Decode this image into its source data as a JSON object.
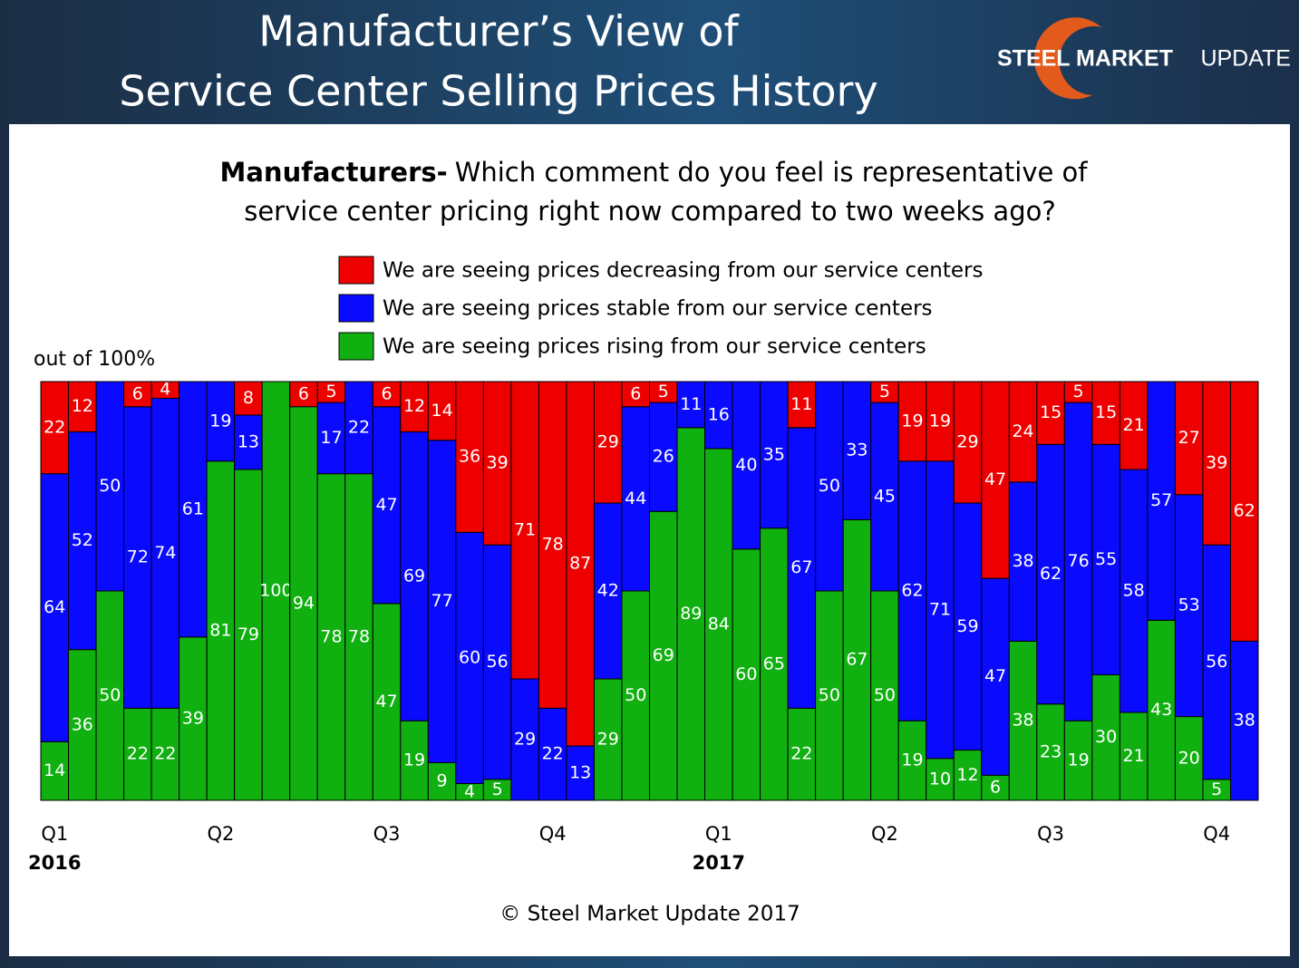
{
  "header": {
    "title": [
      "Manufacturer’s View of",
      "Service Center Selling Prices History"
    ],
    "logo": [
      "STEEL MARKET",
      "UPDATE"
    ]
  },
  "chart_data": {
    "type": "stacked_bar",
    "question_bold": "Manufacturers-",
    "question": [
      "Which comment do you feel is representative of",
      "service center pricing right now compared to two weeks ago?"
    ],
    "y_note": "out of 100%",
    "footer": "© Steel Market Update 2017",
    "categories": [
      "Q1",
      null,
      null,
      null,
      null,
      null,
      "Q2",
      null,
      null,
      null,
      null,
      null,
      "Q3",
      null,
      null,
      null,
      null,
      null,
      "Q4",
      null,
      null,
      null,
      null,
      null,
      "Q1",
      null,
      null,
      null,
      null,
      null,
      "Q2",
      null,
      null,
      null,
      null,
      null,
      "Q3",
      null,
      null,
      null,
      null,
      null,
      "Q4",
      null
    ],
    "years": [
      "2016",
      null,
      null,
      null,
      null,
      null,
      null,
      null,
      null,
      null,
      null,
      null,
      null,
      null,
      null,
      null,
      null,
      null,
      null,
      null,
      null,
      null,
      null,
      null,
      "2017",
      null,
      null,
      null,
      null,
      null,
      null,
      null,
      null,
      null,
      null,
      null,
      null,
      null,
      null,
      null,
      null,
      null,
      null,
      null
    ],
    "ylim": [
      0,
      100
    ],
    "legend": "top-center",
    "series": [
      {
        "name": "We are seeing prices rising from our service centers",
        "color": "#10b010",
        "values": [
          14,
          36,
          50,
          22,
          22,
          39,
          81,
          79,
          100,
          94,
          78,
          78,
          47,
          19,
          9,
          4,
          5,
          0,
          0,
          0,
          29,
          50,
          69,
          89,
          84,
          60,
          65,
          22,
          50,
          67,
          50,
          19,
          10,
          12,
          6,
          38,
          23,
          19,
          30,
          21,
          43,
          20,
          5,
          0
        ]
      },
      {
        "name": "We are seeing prices stable from our service centers",
        "color": "#0a0aff",
        "values": [
          64,
          52,
          50,
          72,
          74,
          61,
          19,
          13,
          0,
          0,
          17,
          22,
          47,
          69,
          77,
          60,
          56,
          29,
          22,
          13,
          42,
          44,
          26,
          11,
          16,
          40,
          35,
          67,
          50,
          33,
          45,
          62,
          71,
          59,
          47,
          38,
          62,
          76,
          55,
          58,
          57,
          53,
          56,
          38
        ]
      },
      {
        "name": "We are seeing prices decreasing from our service centers",
        "color": "#ee0000",
        "values": [
          22,
          12,
          0,
          6,
          4,
          0,
          0,
          8,
          0,
          6,
          5,
          0,
          6,
          12,
          14,
          36,
          39,
          71,
          78,
          87,
          29,
          6,
          5,
          0,
          0,
          0,
          0,
          11,
          0,
          0,
          5,
          19,
          19,
          29,
          47,
          24,
          15,
          5,
          15,
          21,
          0,
          27,
          39,
          62
        ]
      }
    ]
  }
}
